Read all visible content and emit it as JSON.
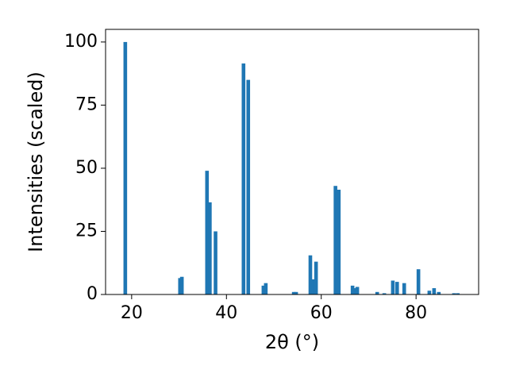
{
  "chart_data": {
    "type": "bar",
    "x_label": "2θ (°)",
    "y_label": "Intensities (scaled)",
    "x": [
      18.66,
      30.2,
      30.6,
      35.9,
      36.5,
      37.7,
      43.6,
      44.6,
      47.8,
      48.3,
      54.2,
      54.7,
      57.7,
      58.2,
      58.9,
      63.0,
      63.7,
      66.6,
      67.1,
      67.6,
      71.8,
      73.3,
      75.1,
      76.0,
      77.5,
      80.5,
      82.8,
      83.8,
      84.8,
      88.0,
      88.8
    ],
    "values": [
      100,
      6.5,
      7,
      49,
      36.5,
      25,
      91.5,
      85,
      3.5,
      4.5,
      1,
      1,
      15.5,
      6,
      13,
      43,
      41.5,
      3.5,
      2.5,
      3,
      1,
      0.5,
      5.5,
      5,
      4.5,
      10,
      1.5,
      2.5,
      1,
      0.5,
      0.5
    ],
    "color": "#1f77b4",
    "xlim": [
      14.5,
      93.2
    ],
    "xticks": [
      20,
      40,
      60,
      80
    ],
    "ylim": [
      0,
      105
    ],
    "yticks": [
      0,
      25,
      50,
      75,
      100
    ],
    "grid": false
  }
}
